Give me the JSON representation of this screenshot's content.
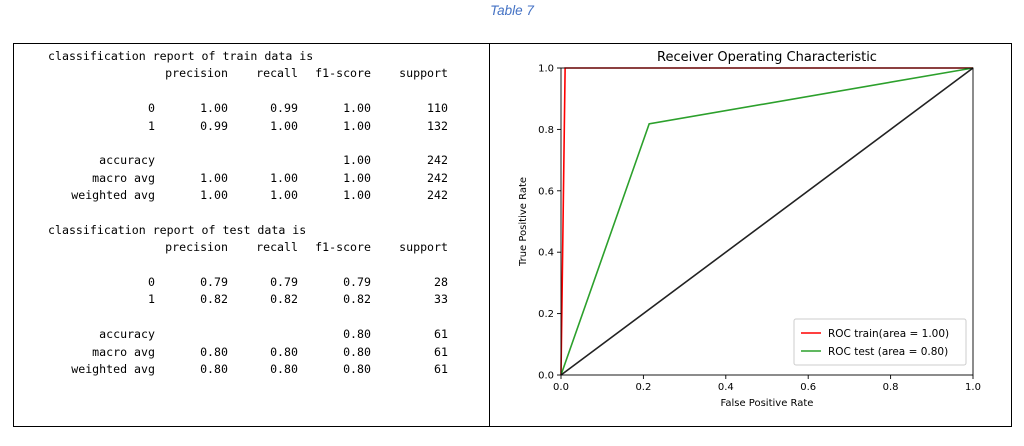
{
  "caption": "Table 7",
  "train_report": {
    "heading": "classification report of train data is",
    "columns": [
      "precision",
      "recall",
      "f1-score",
      "support"
    ],
    "rows": [
      {
        "label": "0",
        "precision": "1.00",
        "recall": "0.99",
        "f1": "1.00",
        "support": "110"
      },
      {
        "label": "1",
        "precision": "0.99",
        "recall": "1.00",
        "f1": "1.00",
        "support": "132"
      }
    ],
    "summary": [
      {
        "label": "accuracy",
        "precision": "",
        "recall": "",
        "f1": "1.00",
        "support": "242"
      },
      {
        "label": "macro avg",
        "precision": "1.00",
        "recall": "1.00",
        "f1": "1.00",
        "support": "242"
      },
      {
        "label": "weighted avg",
        "precision": "1.00",
        "recall": "1.00",
        "f1": "1.00",
        "support": "242"
      }
    ]
  },
  "test_report": {
    "heading": "classification report of test data is",
    "columns": [
      "precision",
      "recall",
      "f1-score",
      "support"
    ],
    "rows": [
      {
        "label": "0",
        "precision": "0.79",
        "recall": "0.79",
        "f1": "0.79",
        "support": "28"
      },
      {
        "label": "1",
        "precision": "0.82",
        "recall": "0.82",
        "f1": "0.82",
        "support": "33"
      }
    ],
    "summary": [
      {
        "label": "accuracy",
        "precision": "",
        "recall": "",
        "f1": "0.80",
        "support": "61"
      },
      {
        "label": "macro avg",
        "precision": "0.80",
        "recall": "0.80",
        "f1": "0.80",
        "support": "61"
      },
      {
        "label": "weighted avg",
        "precision": "0.80",
        "recall": "0.80",
        "f1": "0.80",
        "support": "61"
      }
    ]
  },
  "chart_data": {
    "type": "line",
    "title": "Receiver Operating Characteristic",
    "xlabel": "False Positive Rate",
    "ylabel": "True Positive Rate",
    "xlim": [
      0.0,
      1.0
    ],
    "ylim": [
      0.0,
      1.0
    ],
    "xticks": [
      "0.0",
      "0.2",
      "0.4",
      "0.6",
      "0.8",
      "1.0"
    ],
    "yticks": [
      "0.0",
      "0.2",
      "0.4",
      "0.6",
      "0.8",
      "1.0"
    ],
    "grid": false,
    "legend_position": "lower right",
    "series": [
      {
        "name": "ROC train(area = 1.00)",
        "color": "#ff0000",
        "x": [
          0.0,
          0.0,
          0.01,
          1.0
        ],
        "y": [
          0.0,
          0.0,
          1.0,
          1.0
        ]
      },
      {
        "name": "ROC test (area = 0.80)",
        "color": "#2ca02c",
        "x": [
          0.0,
          0.214,
          1.0
        ],
        "y": [
          0.0,
          0.818,
          1.0
        ]
      },
      {
        "color": "#222222",
        "x": [
          0.0,
          1.0
        ],
        "y": [
          0.0,
          1.0
        ]
      }
    ]
  }
}
